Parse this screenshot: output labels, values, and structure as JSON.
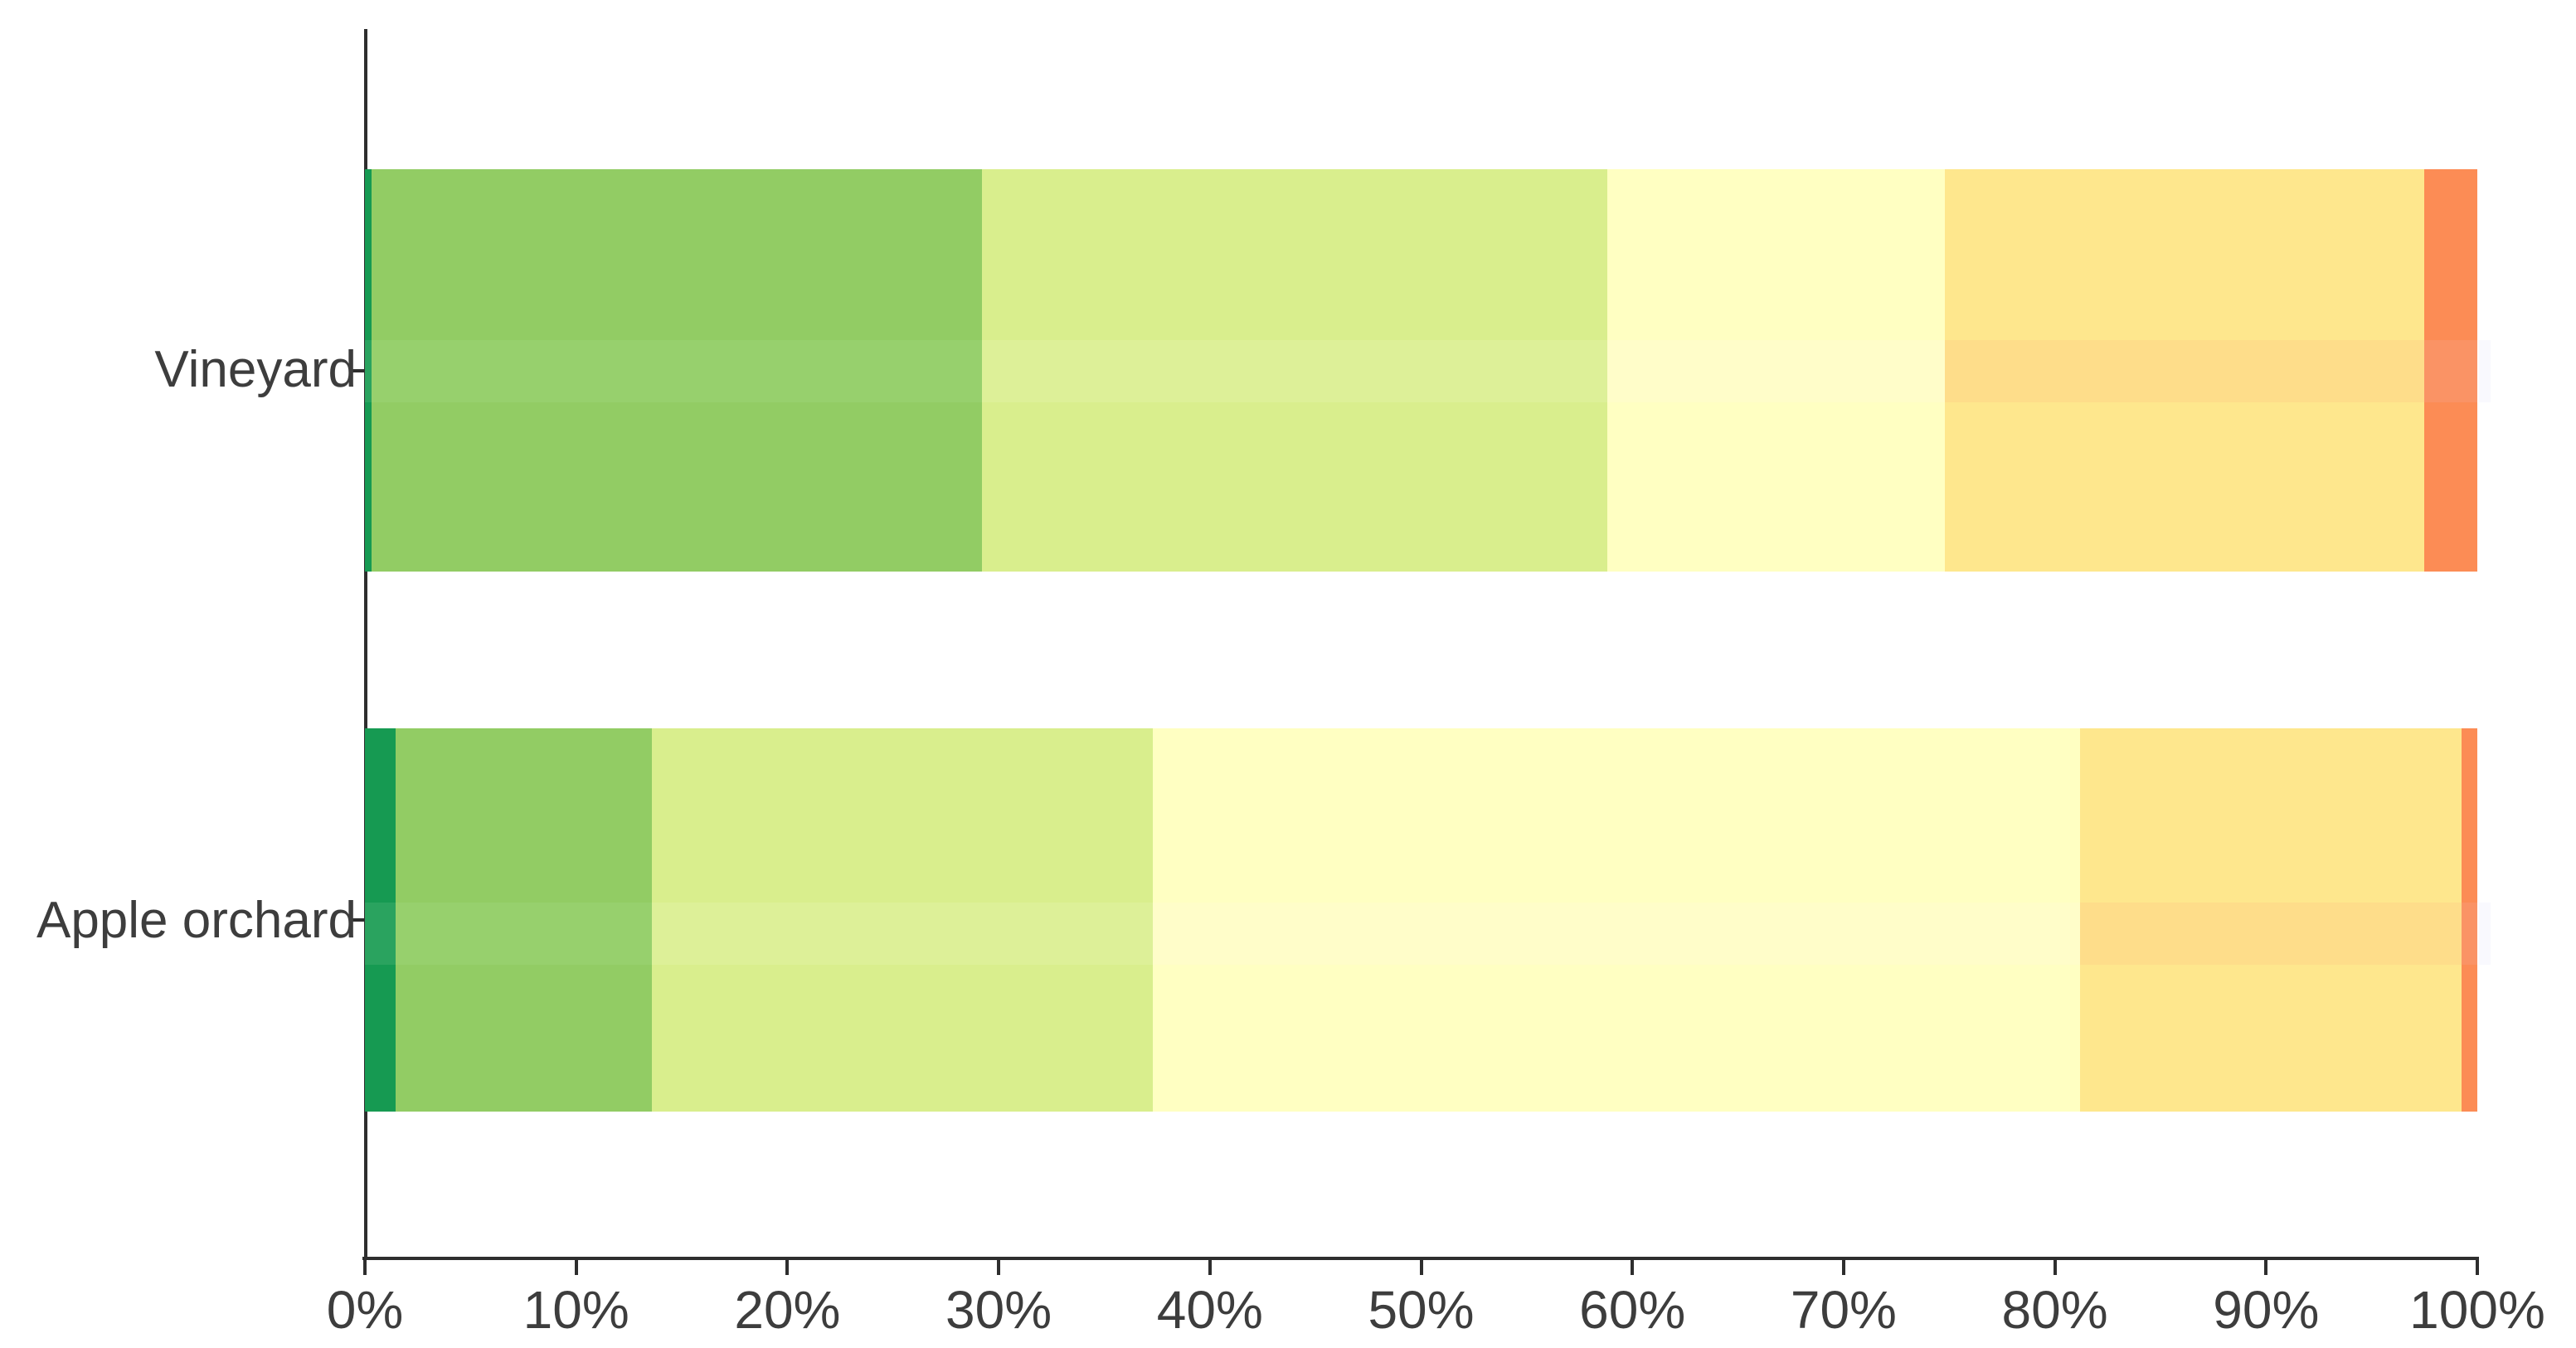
{
  "chart_data": {
    "type": "bar",
    "orientation": "horizontal",
    "stacked_percent": true,
    "title": "",
    "xlabel": "",
    "ylabel": "",
    "xlim": [
      0,
      100
    ],
    "grid": false,
    "legend_position": "none",
    "background_color": "#ffffff",
    "axis_line_color": "#2e2e2e",
    "tick_label_color": "#3d3d3d",
    "category_label_color": "#3d3d3d",
    "categories": [
      "Vineyard",
      "Apple orchard"
    ],
    "x_tick_labels": [
      "0%",
      "10%",
      "20%",
      "30%",
      "40%",
      "50%",
      "60%",
      "70%",
      "80%",
      "90%",
      "100%"
    ],
    "x_tick_values": [
      0,
      10,
      20,
      30,
      40,
      50,
      60,
      70,
      80,
      90,
      100
    ],
    "series": [
      {
        "name": "dark-green",
        "color": "#169a52",
        "mid_color": "#2aa35f",
        "values": [
          0.3,
          1.45
        ]
      },
      {
        "name": "green",
        "color": "#92cc64",
        "mid_color": "#97d06d",
        "values": [
          28.9,
          12.15
        ]
      },
      {
        "name": "yellow-green",
        "color": "#d9ee8d",
        "mid_color": "#ddf098",
        "values": [
          29.6,
          23.7
        ]
      },
      {
        "name": "pale-yellow",
        "color": "#ffffc2",
        "mid_color": "#fffdc9",
        "values": [
          16.0,
          43.9
        ]
      },
      {
        "name": "gold",
        "color": "#fee78d",
        "mid_color": "#fedd8a",
        "values": [
          22.7,
          18.05
        ]
      },
      {
        "name": "orange",
        "color": "#fc8c55",
        "mid_color": "#fa9365",
        "values": [
          2.5,
          0.75
        ]
      }
    ],
    "mid_band_overflow_color": "#f9f9fe",
    "note_mid_band": "each bar has a lighter horizontal band across its middle"
  }
}
